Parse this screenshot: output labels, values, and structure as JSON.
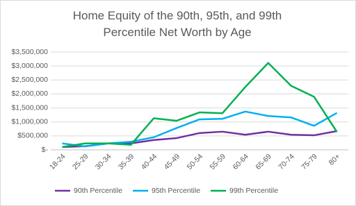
{
  "chart_data": {
    "type": "line",
    "title": "Home Equity of the 90th, 95th, and 99th Percentile Net Worth by Age",
    "categories": [
      "18-24",
      "25-29",
      "30-34",
      "35-39",
      "40-44",
      "45-49",
      "50-54",
      "55-59",
      "60-64",
      "65-69",
      "70-74",
      "75-79",
      "80+"
    ],
    "series": [
      {
        "name": "90th Percentile",
        "color": "#7030a0",
        "values": [
          100000,
          130000,
          230000,
          230000,
          350000,
          420000,
          600000,
          650000,
          540000,
          650000,
          540000,
          520000,
          670000
        ]
      },
      {
        "name": "95th Percentile",
        "color": "#00b0f0",
        "values": [
          230000,
          120000,
          230000,
          290000,
          450000,
          780000,
          1090000,
          1110000,
          1370000,
          1210000,
          1160000,
          860000,
          1320000
        ]
      },
      {
        "name": "99th Percentile",
        "color": "#00b050",
        "values": [
          100000,
          230000,
          230000,
          180000,
          1130000,
          1040000,
          1340000,
          1310000,
          2250000,
          3110000,
          2290000,
          1900000,
          640000
        ]
      }
    ],
    "ylim": [
      0,
      3500000
    ],
    "yticks": [
      {
        "value": 0,
        "label": "$-"
      },
      {
        "value": 500000,
        "label": "$500,000"
      },
      {
        "value": 1000000,
        "label": "$1,000,000"
      },
      {
        "value": 1500000,
        "label": "$1,500,000"
      },
      {
        "value": 2000000,
        "label": "$2,000,000"
      },
      {
        "value": 2500000,
        "label": "$2,500,000"
      },
      {
        "value": 3000000,
        "label": "$3,000,000"
      },
      {
        "value": 3500000,
        "label": "$3,500,000"
      }
    ],
    "grid": true
  }
}
